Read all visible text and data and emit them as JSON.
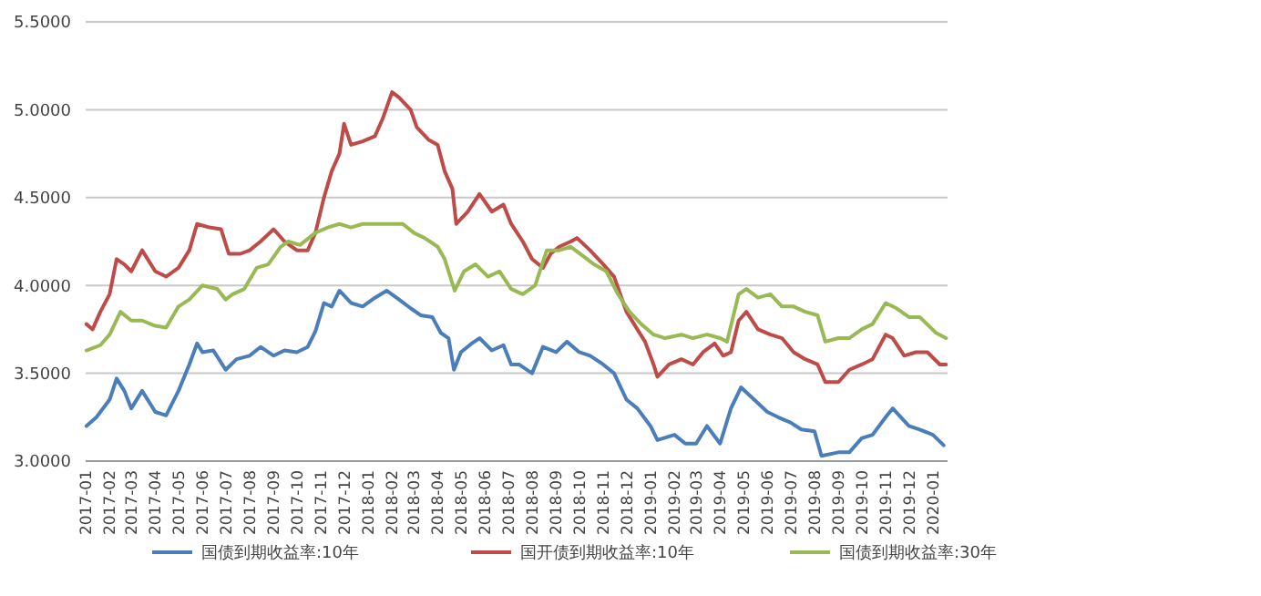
{
  "chart_data": {
    "type": "line",
    "xlim": [
      "2017-01-01",
      "2020-01-20"
    ],
    "ylim": [
      3.0,
      5.5
    ],
    "xticks": [
      "2017-01",
      "2017-02",
      "2017-03",
      "2017-04",
      "2017-05",
      "2017-06",
      "2017-07",
      "2017-08",
      "2017-09",
      "2017-10",
      "2017-11",
      "2017-12",
      "2018-01",
      "2018-02",
      "2018-03",
      "2018-04",
      "2018-05",
      "2018-06",
      "2018-07",
      "2018-08",
      "2018-09",
      "2018-10",
      "2018-11",
      "2018-12",
      "2019-01",
      "2019-02",
      "2019-03",
      "2019-04",
      "2019-05",
      "2019-06",
      "2019-07",
      "2019-08",
      "2019-09",
      "2019-10",
      "2019-11",
      "2019-12",
      "2020-01"
    ],
    "yticks": [
      {
        "value": 3.0,
        "label": "3.0000"
      },
      {
        "value": 3.5,
        "label": "3.5000"
      },
      {
        "value": 4.0,
        "label": "4.0000"
      },
      {
        "value": 4.5,
        "label": "4.5000"
      },
      {
        "value": 5.0,
        "label": "5.0000"
      },
      {
        "value": 5.5,
        "label": "5.5000"
      }
    ],
    "grid": "y",
    "legend": "bottom",
    "line_style": "solid",
    "series": [
      {
        "name": "国债到期收益率:10年",
        "color": "#4a7ebb",
        "x": [
          "2017-01-02",
          "2017-01-15",
          "2017-02-01",
          "2017-02-10",
          "2017-02-20",
          "2017-03-01",
          "2017-03-15",
          "2017-04-01",
          "2017-04-15",
          "2017-05-01",
          "2017-05-15",
          "2017-05-25",
          "2017-06-01",
          "2017-06-15",
          "2017-07-01",
          "2017-07-15",
          "2017-08-01",
          "2017-08-15",
          "2017-09-01",
          "2017-09-15",
          "2017-10-01",
          "2017-10-15",
          "2017-10-25",
          "2017-11-05",
          "2017-11-15",
          "2017-11-25",
          "2017-12-10",
          "2017-12-25",
          "2018-01-10",
          "2018-01-25",
          "2018-02-10",
          "2018-02-25",
          "2018-03-10",
          "2018-03-25",
          "2018-04-05",
          "2018-04-15",
          "2018-04-22",
          "2018-05-01",
          "2018-05-15",
          "2018-05-25",
          "2018-06-10",
          "2018-06-25",
          "2018-07-05",
          "2018-07-15",
          "2018-08-01",
          "2018-08-15",
          "2018-09-01",
          "2018-09-15",
          "2018-10-01",
          "2018-10-15",
          "2018-11-01",
          "2018-11-15",
          "2018-12-01",
          "2018-12-15",
          "2019-01-01",
          "2019-01-10",
          "2019-02-01",
          "2019-02-15",
          "2019-03-01",
          "2019-03-15",
          "2019-04-01",
          "2019-04-15",
          "2019-04-28",
          "2019-05-15",
          "2019-06-01",
          "2019-06-15",
          "2019-07-01",
          "2019-07-15",
          "2019-08-01",
          "2019-08-10",
          "2019-09-01",
          "2019-09-15",
          "2019-10-01",
          "2019-10-15",
          "2019-11-01",
          "2019-11-10",
          "2019-12-01",
          "2019-12-15",
          "2020-01-01",
          "2020-01-15"
        ],
        "values": [
          3.2,
          3.25,
          3.35,
          3.47,
          3.4,
          3.3,
          3.4,
          3.28,
          3.26,
          3.4,
          3.55,
          3.67,
          3.62,
          3.63,
          3.52,
          3.58,
          3.6,
          3.65,
          3.6,
          3.63,
          3.62,
          3.65,
          3.74,
          3.9,
          3.88,
          3.97,
          3.9,
          3.88,
          3.93,
          3.97,
          3.92,
          3.87,
          3.83,
          3.82,
          3.73,
          3.7,
          3.52,
          3.62,
          3.67,
          3.7,
          3.63,
          3.66,
          3.55,
          3.55,
          3.5,
          3.65,
          3.62,
          3.68,
          3.62,
          3.6,
          3.55,
          3.5,
          3.35,
          3.3,
          3.2,
          3.12,
          3.15,
          3.1,
          3.1,
          3.2,
          3.1,
          3.3,
          3.42,
          3.35,
          3.28,
          3.25,
          3.22,
          3.18,
          3.17,
          3.03,
          3.05,
          3.05,
          3.13,
          3.15,
          3.25,
          3.3,
          3.2,
          3.18,
          3.15,
          3.09
        ]
      },
      {
        "name": "国开债到期收益率:10年",
        "color": "#be4b48",
        "x": [
          "2017-01-02",
          "2017-01-10",
          "2017-01-20",
          "2017-02-01",
          "2017-02-10",
          "2017-02-20",
          "2017-03-01",
          "2017-03-15",
          "2017-04-01",
          "2017-04-15",
          "2017-05-01",
          "2017-05-15",
          "2017-05-25",
          "2017-06-10",
          "2017-06-25",
          "2017-07-05",
          "2017-07-20",
          "2017-08-01",
          "2017-08-15",
          "2017-09-01",
          "2017-09-15",
          "2017-10-01",
          "2017-10-15",
          "2017-10-25",
          "2017-11-05",
          "2017-11-15",
          "2017-11-25",
          "2017-12-01",
          "2017-12-10",
          "2017-12-25",
          "2018-01-10",
          "2018-01-20",
          "2018-02-01",
          "2018-02-10",
          "2018-02-25",
          "2018-03-05",
          "2018-03-20",
          "2018-04-01",
          "2018-04-10",
          "2018-04-20",
          "2018-04-25",
          "2018-05-10",
          "2018-05-25",
          "2018-06-10",
          "2018-06-25",
          "2018-07-05",
          "2018-07-20",
          "2018-08-01",
          "2018-08-15",
          "2018-08-25",
          "2018-09-05",
          "2018-09-20",
          "2018-09-28",
          "2018-10-15",
          "2018-11-01",
          "2018-11-15",
          "2018-12-01",
          "2018-12-15",
          "2018-12-25",
          "2019-01-05",
          "2019-01-10",
          "2019-01-25",
          "2019-02-10",
          "2019-02-25",
          "2019-03-10",
          "2019-03-25",
          "2019-04-05",
          "2019-04-15",
          "2019-04-25",
          "2019-05-05",
          "2019-05-20",
          "2019-06-05",
          "2019-06-20",
          "2019-07-05",
          "2019-07-20",
          "2019-08-05",
          "2019-08-15",
          "2019-09-01",
          "2019-09-15",
          "2019-10-01",
          "2019-10-15",
          "2019-11-01",
          "2019-11-10",
          "2019-11-25",
          "2019-12-10",
          "2019-12-25",
          "2020-01-10",
          "2020-01-18"
        ],
        "values": [
          3.78,
          3.75,
          3.85,
          3.95,
          4.15,
          4.12,
          4.08,
          4.2,
          4.08,
          4.05,
          4.1,
          4.2,
          4.35,
          4.33,
          4.32,
          4.18,
          4.18,
          4.2,
          4.25,
          4.32,
          4.25,
          4.2,
          4.2,
          4.3,
          4.5,
          4.65,
          4.75,
          4.92,
          4.8,
          4.82,
          4.85,
          4.95,
          5.1,
          5.07,
          5.0,
          4.9,
          4.83,
          4.8,
          4.65,
          4.55,
          4.35,
          4.42,
          4.52,
          4.42,
          4.46,
          4.35,
          4.25,
          4.15,
          4.1,
          4.18,
          4.22,
          4.25,
          4.27,
          4.2,
          4.12,
          4.05,
          3.85,
          3.75,
          3.68,
          3.55,
          3.48,
          3.55,
          3.58,
          3.55,
          3.62,
          3.67,
          3.6,
          3.62,
          3.8,
          3.85,
          3.75,
          3.72,
          3.7,
          3.62,
          3.58,
          3.55,
          3.45,
          3.45,
          3.52,
          3.55,
          3.58,
          3.72,
          3.7,
          3.6,
          3.62,
          3.62,
          3.55,
          3.55
        ]
      },
      {
        "name": "国债到期收益率:30年",
        "color": "#98b954",
        "x": [
          "2017-01-02",
          "2017-01-20",
          "2017-02-01",
          "2017-02-15",
          "2017-03-01",
          "2017-03-15",
          "2017-04-01",
          "2017-04-15",
          "2017-05-01",
          "2017-05-15",
          "2017-06-01",
          "2017-06-20",
          "2017-07-01",
          "2017-07-10",
          "2017-07-25",
          "2017-08-10",
          "2017-08-25",
          "2017-09-10",
          "2017-09-20",
          "2017-10-05",
          "2017-10-25",
          "2017-11-10",
          "2017-11-25",
          "2017-12-10",
          "2017-12-25",
          "2018-01-15",
          "2018-02-01",
          "2018-02-15",
          "2018-03-01",
          "2018-03-15",
          "2018-04-01",
          "2018-04-10",
          "2018-04-23",
          "2018-05-05",
          "2018-05-20",
          "2018-06-05",
          "2018-06-20",
          "2018-07-05",
          "2018-07-20",
          "2018-08-05",
          "2018-08-20",
          "2018-09-05",
          "2018-09-20",
          "2018-10-05",
          "2018-10-20",
          "2018-11-05",
          "2018-11-20",
          "2018-12-05",
          "2018-12-20",
          "2019-01-05",
          "2019-01-20",
          "2019-02-10",
          "2019-02-25",
          "2019-03-15",
          "2019-04-01",
          "2019-04-10",
          "2019-04-25",
          "2019-05-05",
          "2019-05-20",
          "2019-06-05",
          "2019-06-20",
          "2019-07-05",
          "2019-07-20",
          "2019-08-05",
          "2019-08-15",
          "2019-09-01",
          "2019-09-15",
          "2019-10-01",
          "2019-10-15",
          "2019-11-01",
          "2019-11-15",
          "2019-12-01",
          "2019-12-15",
          "2020-01-05",
          "2020-01-18"
        ],
        "values": [
          3.63,
          3.66,
          3.72,
          3.85,
          3.8,
          3.8,
          3.77,
          3.76,
          3.88,
          3.92,
          4.0,
          3.98,
          3.92,
          3.95,
          3.98,
          4.1,
          4.12,
          4.22,
          4.25,
          4.23,
          4.3,
          4.33,
          4.35,
          4.33,
          4.35,
          4.35,
          4.35,
          4.35,
          4.3,
          4.27,
          4.22,
          4.15,
          3.97,
          4.08,
          4.12,
          4.05,
          4.08,
          3.98,
          3.95,
          4.0,
          4.2,
          4.2,
          4.22,
          4.17,
          4.12,
          4.08,
          3.95,
          3.85,
          3.78,
          3.72,
          3.7,
          3.72,
          3.7,
          3.72,
          3.7,
          3.68,
          3.95,
          3.98,
          3.93,
          3.95,
          3.88,
          3.88,
          3.85,
          3.83,
          3.68,
          3.7,
          3.7,
          3.75,
          3.78,
          3.9,
          3.87,
          3.82,
          3.82,
          3.73,
          3.7
        ]
      }
    ]
  }
}
